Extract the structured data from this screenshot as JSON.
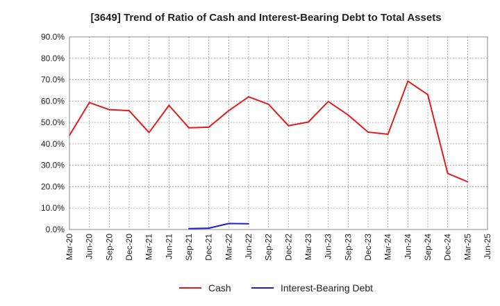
{
  "chart_data": {
    "type": "line",
    "title": "[3649]  Trend of Ratio of Cash and Interest-Bearing Debt to Total Assets",
    "xlabel": "",
    "ylabel": "",
    "ylim": [
      0,
      90
    ],
    "y_ticks": [
      "0.0%",
      "10.0%",
      "20.0%",
      "30.0%",
      "40.0%",
      "50.0%",
      "60.0%",
      "70.0%",
      "80.0%",
      "90.0%"
    ],
    "categories": [
      "Mar-20",
      "Jun-20",
      "Sep-20",
      "Dec-20",
      "Mar-21",
      "Jun-21",
      "Sep-21",
      "Dec-21",
      "Mar-22",
      "Jun-22",
      "Sep-22",
      "Dec-22",
      "Mar-23",
      "Jun-23",
      "Sep-23",
      "Dec-23",
      "Mar-24",
      "Jun-24",
      "Sep-24",
      "Dec-24",
      "Mar-25",
      "Jun-25"
    ],
    "grid": true,
    "series": [
      {
        "name": "Cash",
        "color": "#e31a1c",
        "values": [
          44.0,
          59.3,
          56.0,
          55.5,
          45.3,
          58.0,
          47.5,
          47.8,
          55.5,
          62.0,
          58.5,
          48.5,
          50.2,
          59.8,
          53.5,
          45.5,
          44.5,
          69.3,
          63.0,
          26.2,
          22.3,
          null
        ]
      },
      {
        "name": "Interest-Bearing Debt",
        "color": "#1f1fd1",
        "values": [
          null,
          null,
          null,
          null,
          null,
          null,
          0.4,
          0.6,
          2.8,
          2.7,
          null,
          null,
          null,
          null,
          null,
          null,
          null,
          null,
          null,
          null,
          null,
          null
        ]
      }
    ],
    "legend_position": "bottom"
  }
}
